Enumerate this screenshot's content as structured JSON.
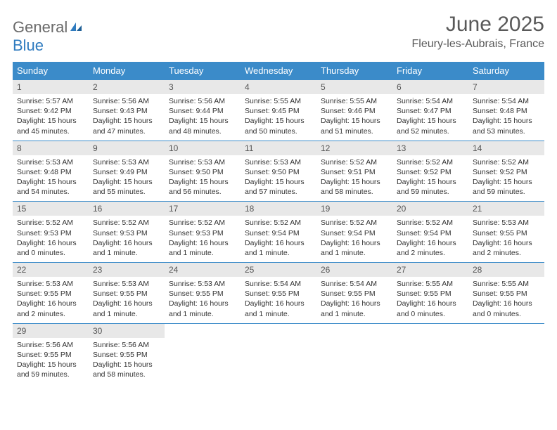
{
  "logo": {
    "text_gray": "General",
    "text_blue": "Blue"
  },
  "title": "June 2025",
  "location": "Fleury-les-Aubrais, France",
  "colors": {
    "header_bg": "#3b8bc9",
    "header_text": "#ffffff",
    "daynum_bg": "#e8e8e8",
    "border": "#3b8bc9",
    "text": "#333333",
    "title_text": "#595959",
    "logo_gray": "#6a6a6a",
    "logo_blue": "#2f7bbf"
  },
  "weekdays": [
    "Sunday",
    "Monday",
    "Tuesday",
    "Wednesday",
    "Thursday",
    "Friday",
    "Saturday"
  ],
  "days": [
    {
      "n": 1,
      "sr": "5:57 AM",
      "ss": "9:42 PM",
      "dl": "15 hours and 45 minutes."
    },
    {
      "n": 2,
      "sr": "5:56 AM",
      "ss": "9:43 PM",
      "dl": "15 hours and 47 minutes."
    },
    {
      "n": 3,
      "sr": "5:56 AM",
      "ss": "9:44 PM",
      "dl": "15 hours and 48 minutes."
    },
    {
      "n": 4,
      "sr": "5:55 AM",
      "ss": "9:45 PM",
      "dl": "15 hours and 50 minutes."
    },
    {
      "n": 5,
      "sr": "5:55 AM",
      "ss": "9:46 PM",
      "dl": "15 hours and 51 minutes."
    },
    {
      "n": 6,
      "sr": "5:54 AM",
      "ss": "9:47 PM",
      "dl": "15 hours and 52 minutes."
    },
    {
      "n": 7,
      "sr": "5:54 AM",
      "ss": "9:48 PM",
      "dl": "15 hours and 53 minutes."
    },
    {
      "n": 8,
      "sr": "5:53 AM",
      "ss": "9:48 PM",
      "dl": "15 hours and 54 minutes."
    },
    {
      "n": 9,
      "sr": "5:53 AM",
      "ss": "9:49 PM",
      "dl": "15 hours and 55 minutes."
    },
    {
      "n": 10,
      "sr": "5:53 AM",
      "ss": "9:50 PM",
      "dl": "15 hours and 56 minutes."
    },
    {
      "n": 11,
      "sr": "5:53 AM",
      "ss": "9:50 PM",
      "dl": "15 hours and 57 minutes."
    },
    {
      "n": 12,
      "sr": "5:52 AM",
      "ss": "9:51 PM",
      "dl": "15 hours and 58 minutes."
    },
    {
      "n": 13,
      "sr": "5:52 AM",
      "ss": "9:52 PM",
      "dl": "15 hours and 59 minutes."
    },
    {
      "n": 14,
      "sr": "5:52 AM",
      "ss": "9:52 PM",
      "dl": "15 hours and 59 minutes."
    },
    {
      "n": 15,
      "sr": "5:52 AM",
      "ss": "9:53 PM",
      "dl": "16 hours and 0 minutes."
    },
    {
      "n": 16,
      "sr": "5:52 AM",
      "ss": "9:53 PM",
      "dl": "16 hours and 1 minute."
    },
    {
      "n": 17,
      "sr": "5:52 AM",
      "ss": "9:53 PM",
      "dl": "16 hours and 1 minute."
    },
    {
      "n": 18,
      "sr": "5:52 AM",
      "ss": "9:54 PM",
      "dl": "16 hours and 1 minute."
    },
    {
      "n": 19,
      "sr": "5:52 AM",
      "ss": "9:54 PM",
      "dl": "16 hours and 1 minute."
    },
    {
      "n": 20,
      "sr": "5:52 AM",
      "ss": "9:54 PM",
      "dl": "16 hours and 2 minutes."
    },
    {
      "n": 21,
      "sr": "5:53 AM",
      "ss": "9:55 PM",
      "dl": "16 hours and 2 minutes."
    },
    {
      "n": 22,
      "sr": "5:53 AM",
      "ss": "9:55 PM",
      "dl": "16 hours and 2 minutes."
    },
    {
      "n": 23,
      "sr": "5:53 AM",
      "ss": "9:55 PM",
      "dl": "16 hours and 1 minute."
    },
    {
      "n": 24,
      "sr": "5:53 AM",
      "ss": "9:55 PM",
      "dl": "16 hours and 1 minute."
    },
    {
      "n": 25,
      "sr": "5:54 AM",
      "ss": "9:55 PM",
      "dl": "16 hours and 1 minute."
    },
    {
      "n": 26,
      "sr": "5:54 AM",
      "ss": "9:55 PM",
      "dl": "16 hours and 1 minute."
    },
    {
      "n": 27,
      "sr": "5:55 AM",
      "ss": "9:55 PM",
      "dl": "16 hours and 0 minutes."
    },
    {
      "n": 28,
      "sr": "5:55 AM",
      "ss": "9:55 PM",
      "dl": "16 hours and 0 minutes."
    },
    {
      "n": 29,
      "sr": "5:56 AM",
      "ss": "9:55 PM",
      "dl": "15 hours and 59 minutes."
    },
    {
      "n": 30,
      "sr": "5:56 AM",
      "ss": "9:55 PM",
      "dl": "15 hours and 58 minutes."
    }
  ],
  "labels": {
    "sunrise": "Sunrise:",
    "sunset": "Sunset:",
    "daylight": "Daylight:"
  }
}
